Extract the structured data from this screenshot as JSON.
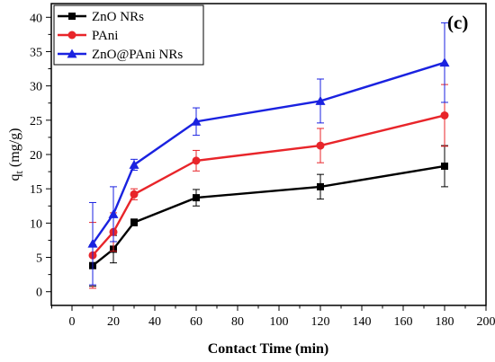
{
  "panel_label": "(c)",
  "chart_data": {
    "type": "line",
    "xlabel": "Contact Time (min)",
    "ylabel_main": "q",
    "ylabel_sub": "t",
    "ylabel_unit": " (mg/g)",
    "xlim": [
      -10,
      200
    ],
    "ylim": [
      -2,
      42
    ],
    "xticks": [
      0,
      20,
      40,
      60,
      80,
      100,
      120,
      140,
      160,
      180,
      200
    ],
    "yticks": [
      0,
      5,
      10,
      15,
      20,
      25,
      30,
      35,
      40
    ],
    "x": [
      10,
      20,
      30,
      60,
      120,
      180
    ],
    "legend_position": "top-left",
    "grid": false,
    "series": [
      {
        "name": "ZnO NRs",
        "color": "#000000",
        "marker": "square",
        "values": [
          3.8,
          6.2,
          10.1,
          13.7,
          15.3,
          18.3
        ],
        "errors": [
          3.0,
          2.0,
          0.5,
          1.2,
          1.8,
          3.0
        ]
      },
      {
        "name": "PAni",
        "color": "#e8252a",
        "marker": "circle",
        "values": [
          5.3,
          8.7,
          14.2,
          19.1,
          21.3,
          25.7
        ],
        "errors": [
          4.8,
          2.8,
          0.8,
          1.5,
          2.5,
          4.5
        ]
      },
      {
        "name": "ZnO@PAni NRs",
        "color": "#1a22e0",
        "marker": "triangle",
        "values": [
          7.0,
          11.3,
          18.5,
          24.8,
          27.8,
          33.4
        ],
        "errors": [
          6.0,
          4.0,
          0.8,
          2.0,
          3.2,
          5.8
        ]
      }
    ]
  }
}
